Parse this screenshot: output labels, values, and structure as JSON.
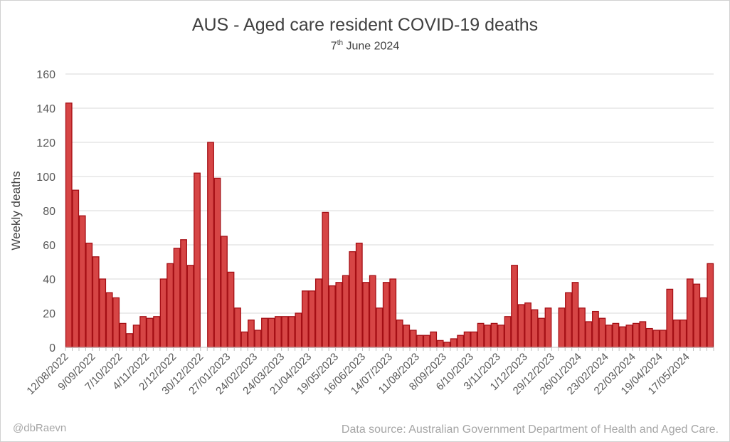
{
  "chart_data": {
    "type": "bar",
    "title": "AUS - Aged care resident COVID-19 deaths",
    "subtitle_day": "7",
    "subtitle_sup": "th",
    "subtitle_rest": " June 2024",
    "ylabel": "Weekly deaths",
    "xlabel": "",
    "ylim": [
      0,
      160
    ],
    "yticks": [
      0,
      20,
      40,
      60,
      80,
      100,
      120,
      140,
      160
    ],
    "grid": true,
    "bar_color": "#d64545",
    "bar_edge_color": "#a50f15",
    "tick_labels": [
      {
        "label": "12/08/2022",
        "index": 0
      },
      {
        "label": "9/09/2022",
        "index": 4
      },
      {
        "label": "7/10/2022",
        "index": 8
      },
      {
        "label": "4/11/2022",
        "index": 12
      },
      {
        "label": "2/12/2022",
        "index": 16
      },
      {
        "label": "30/12/2022",
        "index": 20
      },
      {
        "label": "27/01/2023",
        "index": 24
      },
      {
        "label": "24/02/2023",
        "index": 28
      },
      {
        "label": "24/03/2023",
        "index": 32
      },
      {
        "label": "21/04/2023",
        "index": 36
      },
      {
        "label": "19/05/2023",
        "index": 40
      },
      {
        "label": "16/06/2023",
        "index": 44
      },
      {
        "label": "14/07/2023",
        "index": 48
      },
      {
        "label": "11/08/2023",
        "index": 52
      },
      {
        "label": "8/09/2023",
        "index": 56
      },
      {
        "label": "6/10/2023",
        "index": 60
      },
      {
        "label": "3/11/2023",
        "index": 64
      },
      {
        "label": "1/12/2023",
        "index": 68
      },
      {
        "label": "29/12/2023",
        "index": 72
      },
      {
        "label": "26/01/2024",
        "index": 76
      },
      {
        "label": "23/02/2024",
        "index": 80
      },
      {
        "label": "22/03/2024",
        "index": 84
      },
      {
        "label": "19/04/2024",
        "index": 88
      },
      {
        "label": "17/05/2024",
        "index": 92
      }
    ],
    "values": [
      143,
      92,
      77,
      61,
      53,
      40,
      32,
      29,
      14,
      8,
      13,
      18,
      17,
      18,
      40,
      49,
      58,
      63,
      48,
      102,
      null,
      120,
      99,
      65,
      44,
      23,
      9,
      16,
      10,
      17,
      17,
      18,
      18,
      18,
      20,
      33,
      33,
      40,
      79,
      36,
      38,
      42,
      56,
      61,
      38,
      42,
      23,
      38,
      40,
      16,
      13,
      10,
      7,
      7,
      9,
      4,
      3,
      5,
      7,
      9,
      9,
      14,
      13,
      14,
      13,
      18,
      48,
      25,
      26,
      22,
      17,
      23,
      null,
      23,
      32,
      38,
      23,
      15,
      21,
      17,
      13,
      14,
      12,
      13,
      14,
      15,
      11,
      10,
      10,
      34,
      16,
      16,
      40,
      37,
      29,
      49
    ]
  },
  "credit": "@dbRaevn",
  "source": "Data source: Australian Government Department of Health and Aged Care."
}
